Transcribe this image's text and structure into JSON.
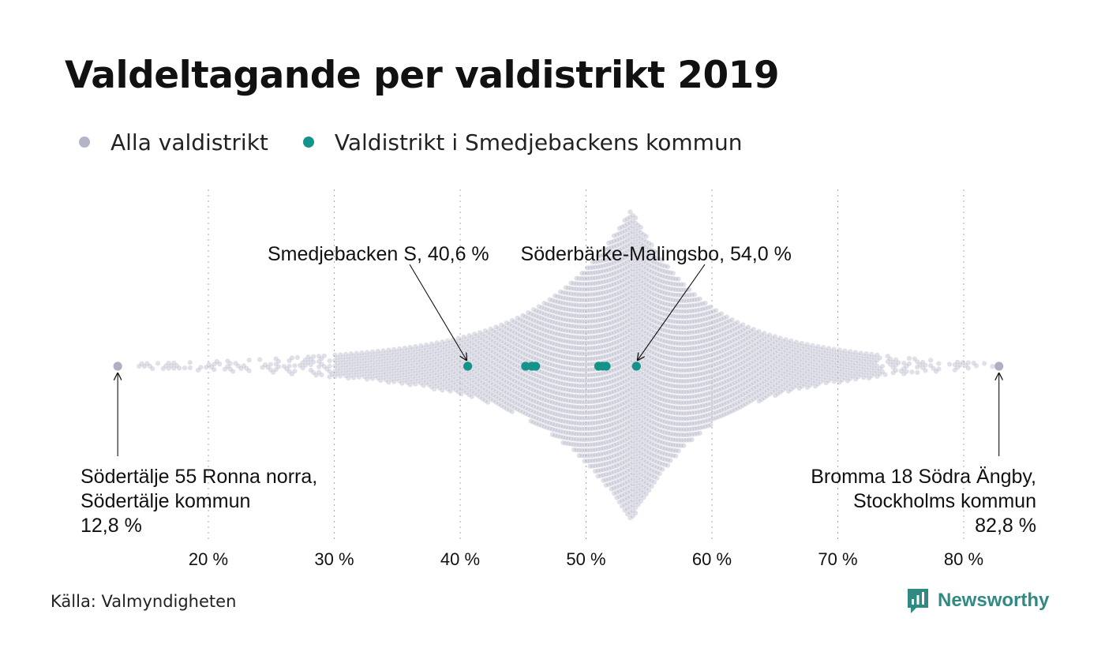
{
  "title": "Valdeltagande per valdistrikt 2019",
  "legend": [
    {
      "label": "Alla valdistrikt",
      "color": "#b4b4c8"
    },
    {
      "label": "Valdistrikt i Smedjebackens kommun",
      "color": "#14938a"
    }
  ],
  "source": "Källa: Valmyndigheten",
  "brand": {
    "name": "Newsworthy",
    "color": "#2f8b81",
    "icon": "bar-chart-icon"
  },
  "chart_data": {
    "type": "scatter",
    "subtype": "beeswarm",
    "xlabel": "",
    "ylabel": "",
    "x_unit": "%",
    "xlim": [
      12,
      84
    ],
    "grid": "vertical dotted",
    "x_ticks": [
      {
        "value": 20,
        "label": "20 %"
      },
      {
        "value": 30,
        "label": "30 %"
      },
      {
        "value": 40,
        "label": "40 %"
      },
      {
        "value": 50,
        "label": "50 %"
      },
      {
        "value": 60,
        "label": "60 %"
      },
      {
        "value": 70,
        "label": "70 %"
      },
      {
        "value": 80,
        "label": "80 %"
      }
    ],
    "distribution": {
      "name": "Alla valdistrikt",
      "min": 12.8,
      "max": 82.8,
      "peak": 53.6,
      "color": "#b4b4c8"
    },
    "series": [
      {
        "name": "Valdistrikt i Smedjebackens kommun",
        "color": "#14938a",
        "values": [
          40.6,
          45.2,
          45.7,
          46.0,
          51.0,
          51.3,
          51.6,
          54.0
        ]
      }
    ],
    "annotations": [
      {
        "lines": [
          "Smedjebacken S, 40,6 %"
        ],
        "x": 40.6,
        "anchor": "end",
        "label_x": 42.3
      },
      {
        "lines": [
          "Söderbärke-Malingsbo, 54,0 %"
        ],
        "x": 54.0,
        "anchor": "start",
        "label_x": 44.8
      },
      {
        "lines": [
          "Södertälje 55 Ronna norra,",
          "Södertälje kommun",
          "12,8 %"
        ],
        "x": 12.8,
        "anchor": "start"
      },
      {
        "lines": [
          "Bromma 18 Södra Ängby,",
          "Stockholms kommun",
          "82,8 %"
        ],
        "x": 82.8,
        "anchor": "end"
      }
    ]
  }
}
